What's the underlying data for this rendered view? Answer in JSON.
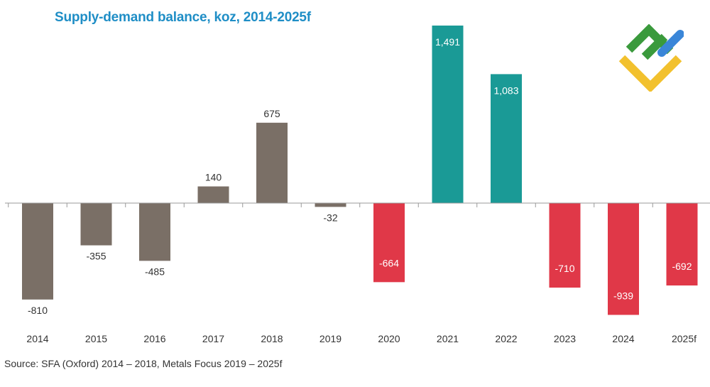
{
  "chart_data": {
    "type": "bar",
    "title": "Supply-demand balance, koz, 2014-2025f",
    "xlabel": "",
    "ylabel": "",
    "categories": [
      "2014",
      "2015",
      "2016",
      "2017",
      "2018",
      "2019",
      "2020",
      "2021",
      "2022",
      "2023",
      "2024",
      "2025f"
    ],
    "values": [
      -810,
      -355,
      -485,
      140,
      675,
      -32,
      -664,
      1491,
      1083,
      -710,
      -939,
      -692
    ],
    "value_labels": [
      "-810",
      "-355",
      "-485",
      "140",
      "675",
      "-32",
      "-664",
      "1,491",
      "1,083",
      "-710",
      "-939",
      "-692"
    ],
    "bar_groups": [
      "historical",
      "historical",
      "historical",
      "historical",
      "historical",
      "historical",
      "deficit",
      "surplus",
      "surplus",
      "deficit",
      "deficit",
      "deficit"
    ],
    "ylim": [
      -1000,
      1500
    ],
    "grid": false,
    "legend": "none"
  },
  "colors": {
    "historical": "#7a6f66",
    "surplus": "#1a9a96",
    "deficit": "#e03848",
    "title": "#1f8ec6",
    "axis": "#999999",
    "label_dark": "#333333",
    "label_light": "#ffffff"
  },
  "source_note": "Source: SFA (Oxford) 2014 – 2018, Metals Focus 2019 – 2025f",
  "logo": {
    "icon": "brand-logo-icon"
  }
}
